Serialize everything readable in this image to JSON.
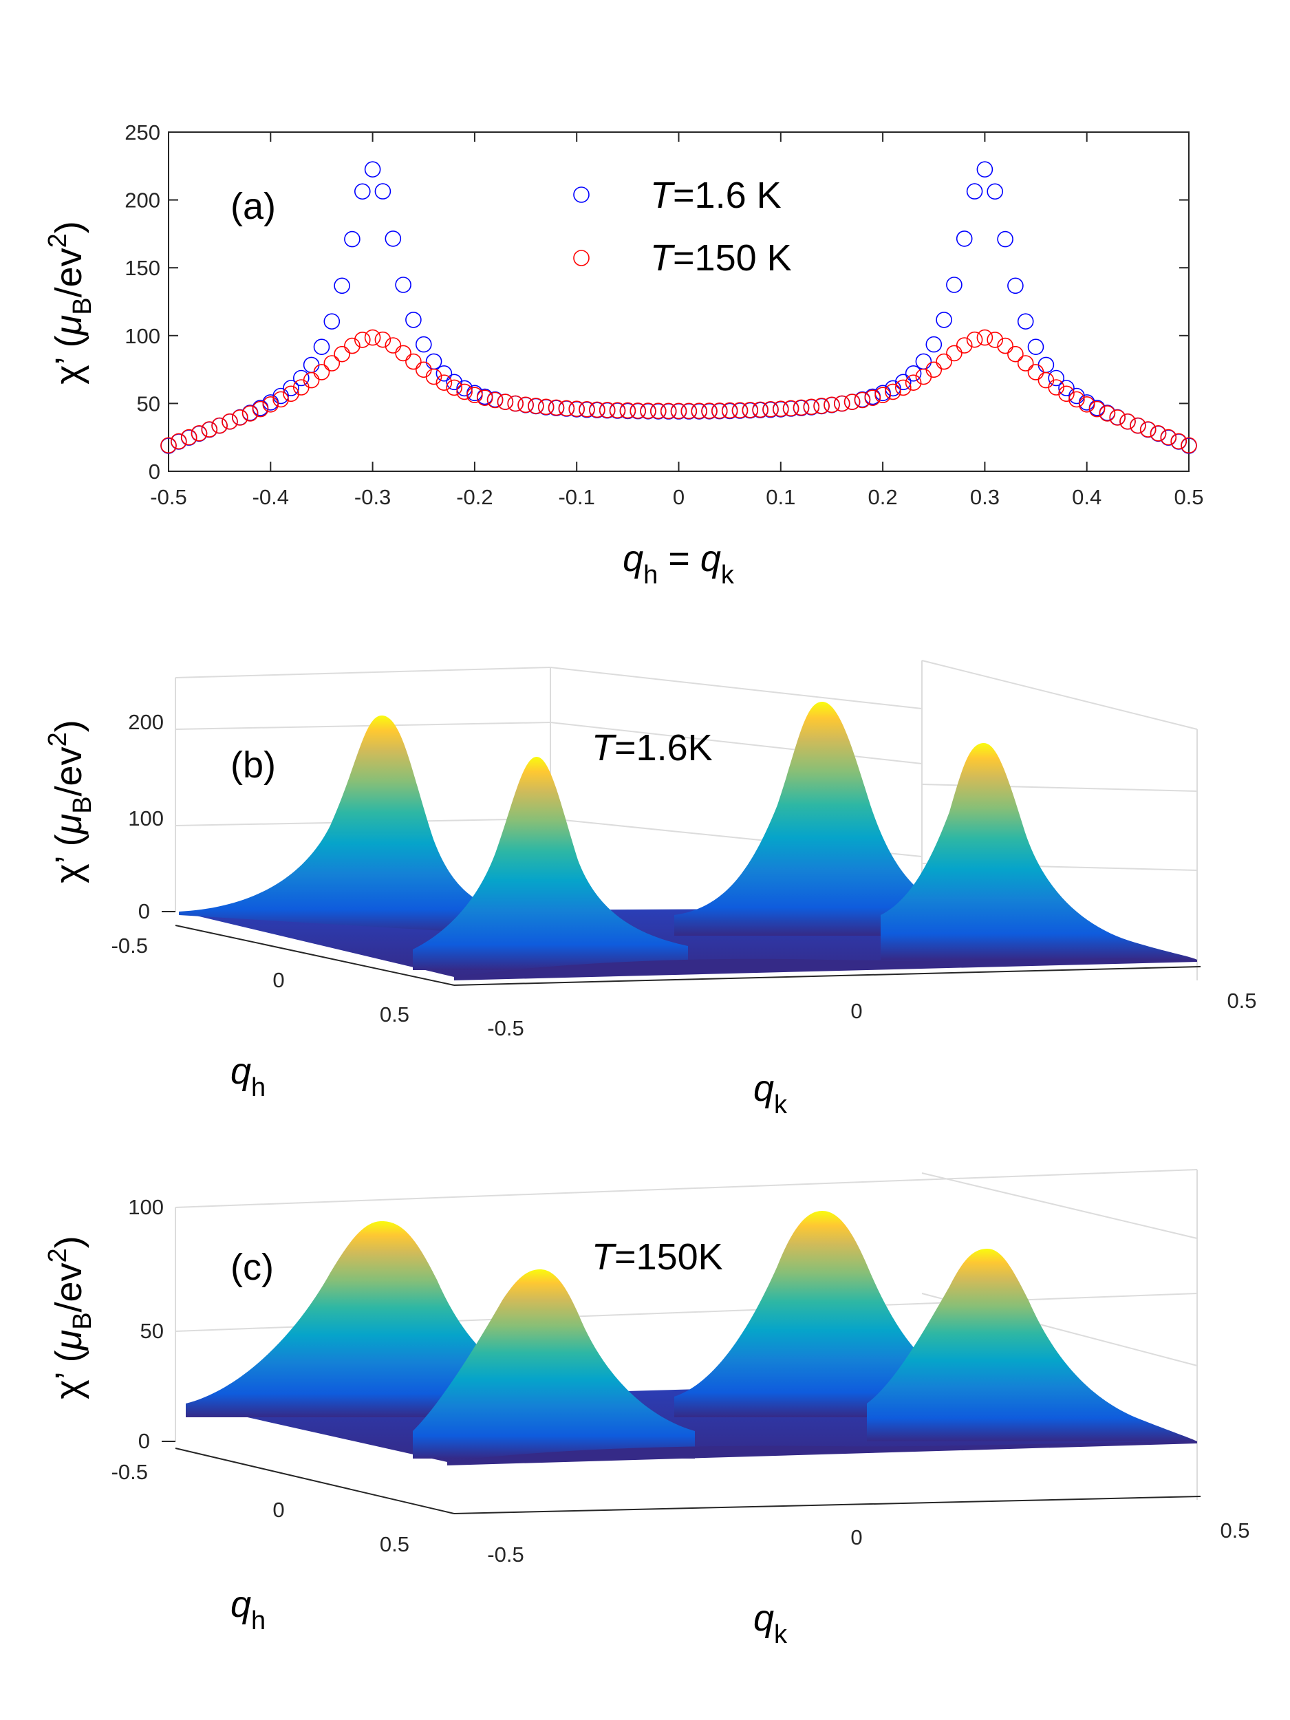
{
  "colors": {
    "series_low_T": "#0000ff",
    "series_high_T": "#ff0000",
    "axis": "#262626",
    "grid": "#dcdcdc"
  },
  "chart_data": [
    {
      "type": "scatter",
      "panel": "(a)",
      "xlabel_parts": [
        "q",
        "h",
        " = ",
        "q",
        "k"
      ],
      "ylabel_parts": [
        "χ’ (",
        "μ",
        "B",
        "/ev",
        "2",
        ")"
      ],
      "xlim": [
        -0.5,
        0.5
      ],
      "ylim": [
        0,
        250
      ],
      "xticks": [
        -0.5,
        -0.4,
        -0.3,
        -0.2,
        -0.1,
        0,
        0.1,
        0.2,
        0.3,
        0.4,
        0.5
      ],
      "xtick_labels": [
        "-0.5",
        "-0.4",
        "-0.3",
        "-0.2",
        "-0.1",
        "0",
        "0.1",
        "0.2",
        "0.3",
        "0.4",
        "0.5"
      ],
      "yticks": [
        0,
        50,
        100,
        150,
        200,
        250
      ],
      "ytick_labels": [
        "0",
        "50",
        "100",
        "150",
        "200",
        "250"
      ],
      "legend_position": "top-center",
      "x_step": 0.01,
      "series": [
        {
          "name": "T=1.6 K",
          "legend_parts": [
            "T",
            "=1.6 K"
          ],
          "peak_positions": [
            -0.3,
            0.3
          ],
          "peak_height": 222,
          "baseline": 40,
          "edge_value": 14,
          "peak_halfwidth": 0.032
        },
        {
          "name": "T=150 K",
          "legend_parts": [
            "T",
            "=150 K"
          ],
          "peak_positions": [
            -0.3,
            0.3
          ],
          "peak_height": 98,
          "baseline": 40,
          "edge_value": 14,
          "peak_halfwidth": 0.06
        }
      ]
    },
    {
      "type": "surface",
      "panel": "(b)",
      "title_parts": [
        "T",
        "=1.6K"
      ],
      "zlim": [
        0,
        250
      ],
      "zticks": [
        "0",
        "100",
        "200"
      ],
      "qh_ticks": [
        "-0.5",
        "0",
        "0.5"
      ],
      "qk_ticks": [
        "-0.5",
        "0",
        "0.5"
      ],
      "xlabel_parts": [
        "q",
        "h"
      ],
      "ylabel_parts": [
        "q",
        "k"
      ],
      "zlabel_parts": [
        "χ’ (",
        "μ",
        "B",
        "/ev",
        "2",
        ")"
      ],
      "peak_height": 222,
      "floor": 14,
      "peak_positions": [
        [
          -0.3,
          -0.3
        ],
        [
          -0.3,
          0.3
        ],
        [
          0.3,
          -0.3
        ],
        [
          0.3,
          0.3
        ]
      ]
    },
    {
      "type": "surface",
      "panel": "(c)",
      "title_parts": [
        "T",
        "=150K"
      ],
      "zlim": [
        0,
        100
      ],
      "zticks": [
        "0",
        "50",
        "100"
      ],
      "qh_ticks": [
        "-0.5",
        "0",
        "0.5"
      ],
      "qk_ticks": [
        "-0.5",
        "0",
        "0.5"
      ],
      "xlabel_parts": [
        "q",
        "h"
      ],
      "ylabel_parts": [
        "q",
        "k"
      ],
      "zlabel_parts": [
        "χ’ (",
        "μ",
        "B",
        "/ev",
        "2",
        ")"
      ],
      "peak_height": 98,
      "floor": 14,
      "peak_positions": [
        [
          -0.3,
          -0.3
        ],
        [
          -0.3,
          0.3
        ],
        [
          0.3,
          -0.3
        ],
        [
          0.3,
          0.3
        ]
      ]
    }
  ]
}
